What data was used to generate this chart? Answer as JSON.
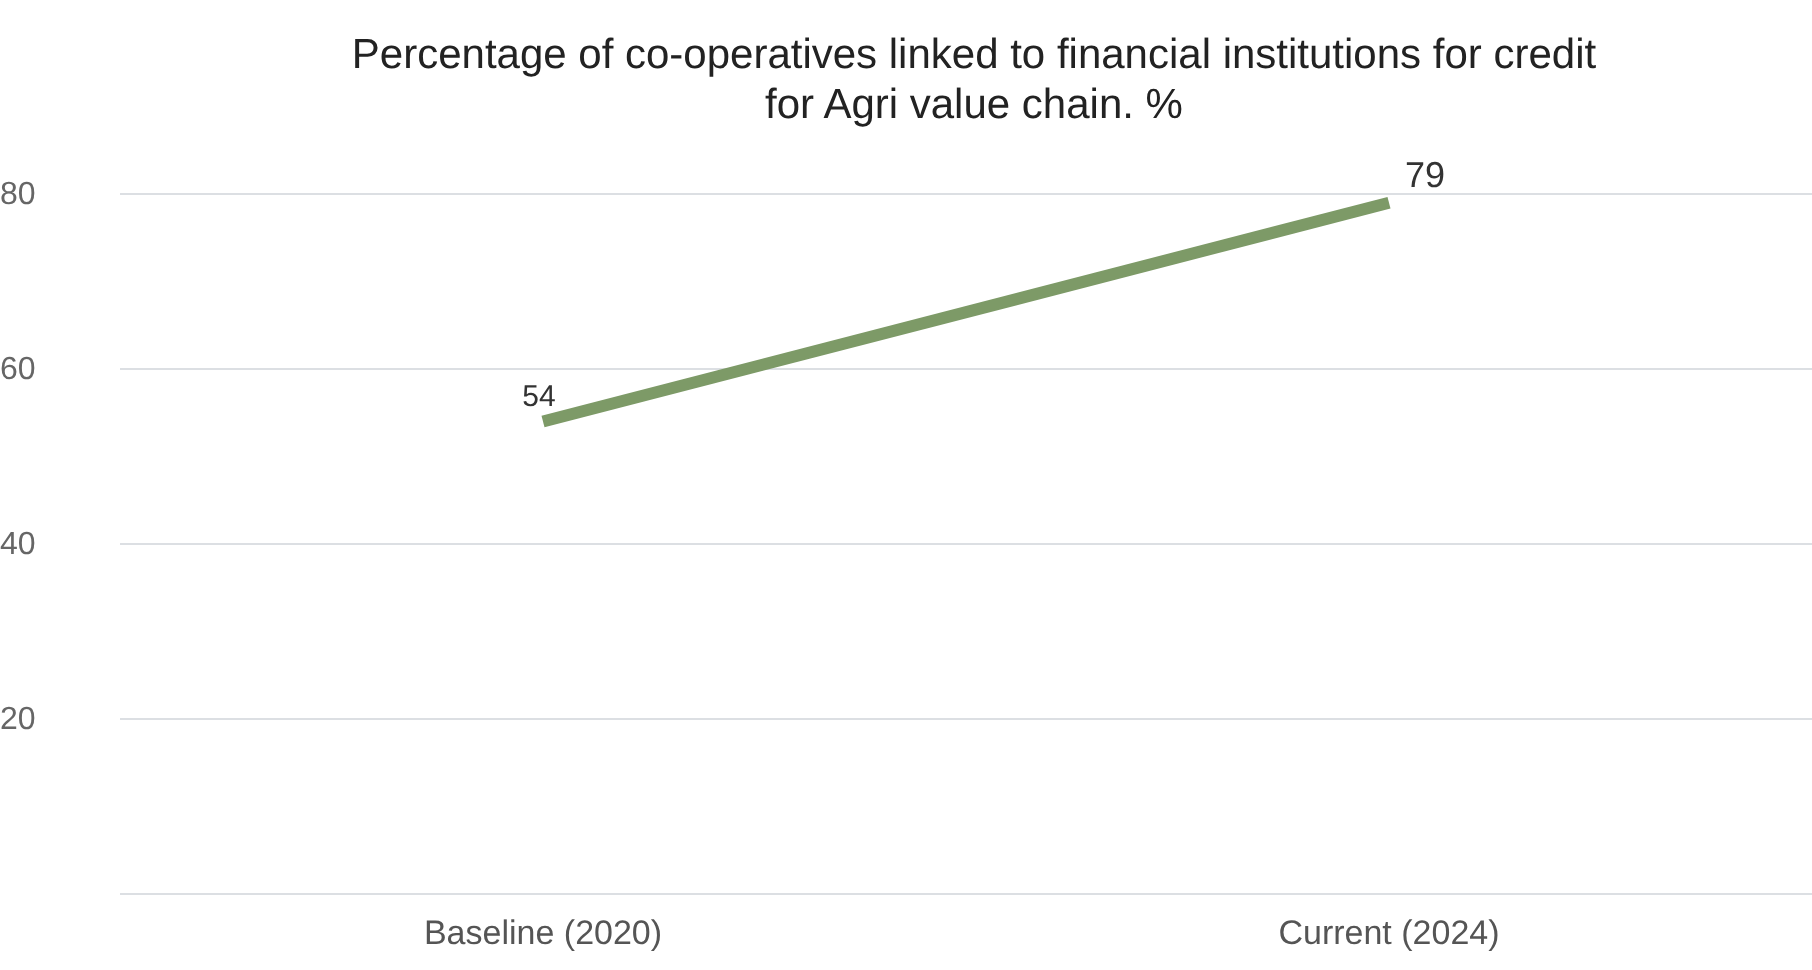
{
  "chart_data": {
    "type": "line",
    "title": "Percentage of co-operatives linked to financial institutions for credit for Agri value chain. %",
    "categories": [
      "Baseline (2020)",
      "Current (2024)"
    ],
    "series": [
      {
        "color": "#7d9a67",
        "values": [
          54,
          79
        ]
      }
    ],
    "ylim": [
      0,
      80
    ],
    "yticks": [
      {
        "value": 0,
        "label": null
      },
      20,
      40,
      60,
      80
    ],
    "grid": "y",
    "data_labels": true,
    "marker": "none",
    "line_style": "solid"
  }
}
